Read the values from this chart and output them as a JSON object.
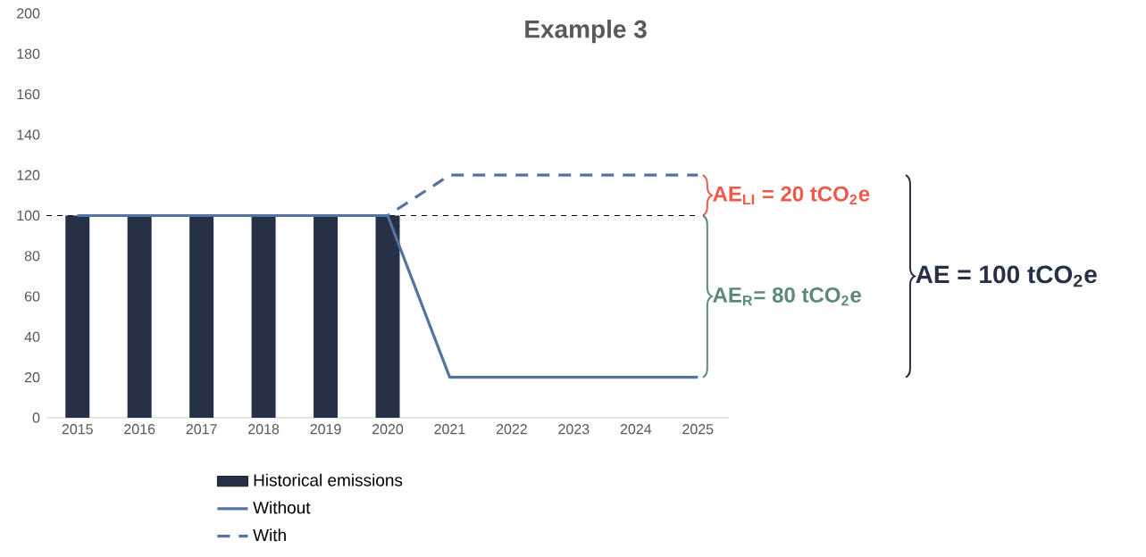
{
  "chart_data": {
    "type": "bar",
    "title": "Example 3",
    "categories": [
      "2015",
      "2016",
      "2017",
      "2018",
      "2019",
      "2020",
      "2021",
      "2022",
      "2023",
      "2024",
      "2025"
    ],
    "series": [
      {
        "name": "Historical emissions",
        "color": "#263147",
        "values": [
          100,
          100,
          100,
          100,
          100,
          100,
          null,
          null,
          null,
          null,
          null
        ]
      },
      {
        "name": "Without",
        "type": "line",
        "color": "#55739f",
        "line_style": "solid",
        "values": [
          100,
          100,
          100,
          100,
          100,
          100,
          20,
          20,
          20,
          20,
          20
        ]
      },
      {
        "name": "With",
        "type": "line",
        "color": "#55739f",
        "line_style": "dashed",
        "values": [
          100,
          100,
          100,
          100,
          100,
          100,
          120,
          120,
          120,
          120,
          120
        ]
      }
    ],
    "ylim": [
      0,
      200
    ],
    "yticks": [
      0,
      20,
      40,
      60,
      80,
      100,
      120,
      140,
      160,
      180,
      200
    ],
    "ref_lines": [
      {
        "axis": "y",
        "value": 100,
        "color": "#000000",
        "line_style": "dashed"
      }
    ],
    "annotations": [
      "AE$_{LI}$ = 20 tCO$_{2}$e",
      "AE$_{R}$= 80 tCO$_{2}$e",
      "AE = 100 tCO$_{2}$e"
    ],
    "legend": "bottom",
    "marker": "none"
  }
}
